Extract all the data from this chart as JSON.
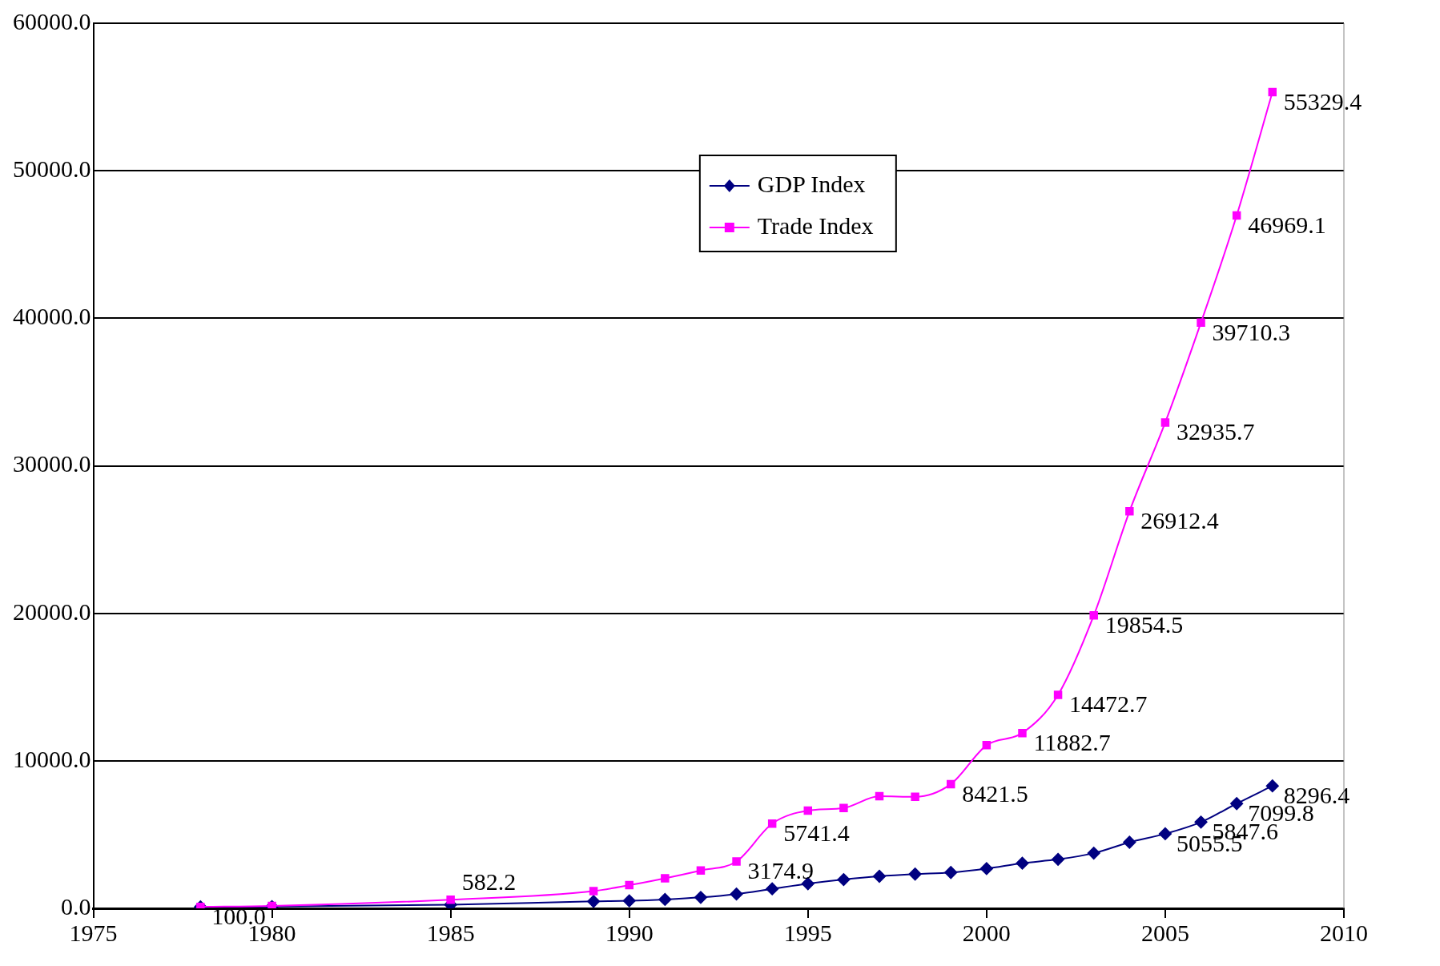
{
  "chart_data": {
    "type": "line",
    "x": [
      1978,
      1980,
      1985,
      1989,
      1990,
      1991,
      1992,
      1993,
      1994,
      1995,
      1996,
      1997,
      1998,
      1999,
      2000,
      2001,
      2002,
      2003,
      2004,
      2005,
      2006,
      2007,
      2008
    ],
    "series": [
      {
        "name": "GDP Index",
        "color": "#000080",
        "marker": "diamond",
        "values": [
          100.0,
          120,
          250,
          470,
          510,
          600,
          740,
          970,
          1320,
          1670,
          1950,
          2170,
          2320,
          2430,
          2690,
          3060,
          3320,
          3740,
          4480,
          5055.5,
          5847.6,
          7099.8,
          8296.4
        ],
        "value_labels": [
          "100.0",
          null,
          null,
          null,
          null,
          null,
          null,
          null,
          null,
          null,
          null,
          null,
          null,
          null,
          null,
          null,
          null,
          null,
          null,
          "5055.5",
          "5847.6",
          "7099.8",
          "8296.4"
        ]
      },
      {
        "name": "Trade Index",
        "color": "#ff00ff",
        "marker": "square",
        "values": [
          100,
          160,
          582.2,
          1170,
          1570,
          2040,
          2570,
          3174.9,
          5741.4,
          6620,
          6800,
          7600,
          7560,
          8421.5,
          11060,
          11882.7,
          14472.7,
          19854.5,
          26912.4,
          32935.7,
          39710.3,
          46969.1,
          55329.4
        ],
        "value_labels": [
          null,
          null,
          "582.2",
          null,
          null,
          null,
          null,
          "3174.9",
          "5741.4",
          null,
          null,
          null,
          null,
          "8421.5",
          null,
          "11882.7",
          "14472.7",
          "19854.5",
          "26912.4",
          "32935.7",
          "39710.3",
          "46969.1",
          "55329.4"
        ]
      }
    ],
    "xlim": [
      1975,
      2010
    ],
    "xticks": [
      1975,
      1980,
      1985,
      1990,
      1995,
      2000,
      2005,
      2010
    ],
    "ylim": [
      0,
      60000
    ],
    "yticks": [
      {
        "value": 0,
        "label": "0.0"
      },
      {
        "value": 10000,
        "label": "10000.0"
      },
      {
        "value": 20000,
        "label": "20000.0"
      },
      {
        "value": 30000,
        "label": "30000.0"
      },
      {
        "value": 40000,
        "label": "40000.0"
      },
      {
        "value": 50000,
        "label": "50000.0"
      },
      {
        "value": 60000,
        "label": "60000.0"
      }
    ],
    "grid": "y",
    "legend": "top"
  }
}
